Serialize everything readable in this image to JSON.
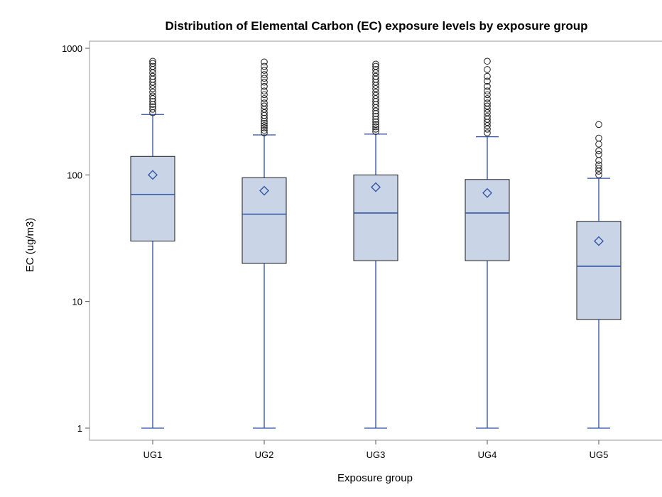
{
  "chart_data": {
    "type": "boxplot",
    "title": "Distribution of Elemental Carbon (EC) exposure levels by exposure group",
    "xlabel": "Exposure group",
    "ylabel": "EC (ug/m3)",
    "yscale": "log",
    "ylim": [
      0.85,
      1150
    ],
    "yticks": [
      {
        "value": 1,
        "label": "1"
      },
      {
        "value": 10,
        "label": "10"
      },
      {
        "value": 100,
        "label": "100"
      },
      {
        "value": 1000,
        "label": "1000"
      }
    ],
    "grid": false,
    "colors": {
      "box_fill": "#c9d5e6",
      "box_stroke": "#1c1c1c",
      "whisker": "#2c4ea3",
      "median": "#2c4ea3",
      "mean_marker": "#2c4ea3",
      "outlier": "#1c1c1c"
    },
    "categories": [
      "UG1",
      "UG2",
      "UG3",
      "UG4",
      "UG5"
    ],
    "boxes": [
      {
        "category": "UG1",
        "min": 1,
        "q1": 30,
        "median": 70,
        "q3": 140,
        "max": 300,
        "mean": 100,
        "outliers": [
          310,
          330,
          345,
          360,
          380,
          400,
          420,
          450,
          480,
          510,
          540,
          570,
          600,
          640,
          680,
          720,
          760,
          790
        ]
      },
      {
        "category": "UG2",
        "min": 1,
        "q1": 20,
        "median": 49,
        "q3": 95,
        "max": 207,
        "mean": 75,
        "outliers": [
          215,
          225,
          235,
          245,
          255,
          265,
          280,
          295,
          310,
          330,
          350,
          370,
          400,
          430,
          460,
          500,
          540,
          580,
          620,
          670,
          720,
          780
        ]
      },
      {
        "category": "UG3",
        "min": 1,
        "q1": 21,
        "median": 50,
        "q3": 100,
        "max": 210,
        "mean": 80,
        "outliers": [
          220,
          230,
          240,
          250,
          262,
          275,
          290,
          305,
          320,
          340,
          360,
          380,
          400,
          425,
          450,
          480,
          510,
          540,
          570,
          600,
          640,
          680,
          720,
          750
        ]
      },
      {
        "category": "UG4",
        "min": 1,
        "q1": 21,
        "median": 50,
        "q3": 92,
        "max": 200,
        "mean": 72,
        "outliers": [
          215,
          230,
          245,
          260,
          275,
          290,
          310,
          330,
          350,
          370,
          400,
          430,
          460,
          500,
          550,
          600,
          680,
          790
        ]
      },
      {
        "category": "UG5",
        "min": 1,
        "q1": 7.2,
        "median": 19,
        "q3": 43,
        "max": 94,
        "mean": 30,
        "outliers": [
          100,
          107,
          113,
          120,
          130,
          145,
          155,
          175,
          195,
          250
        ]
      }
    ]
  }
}
